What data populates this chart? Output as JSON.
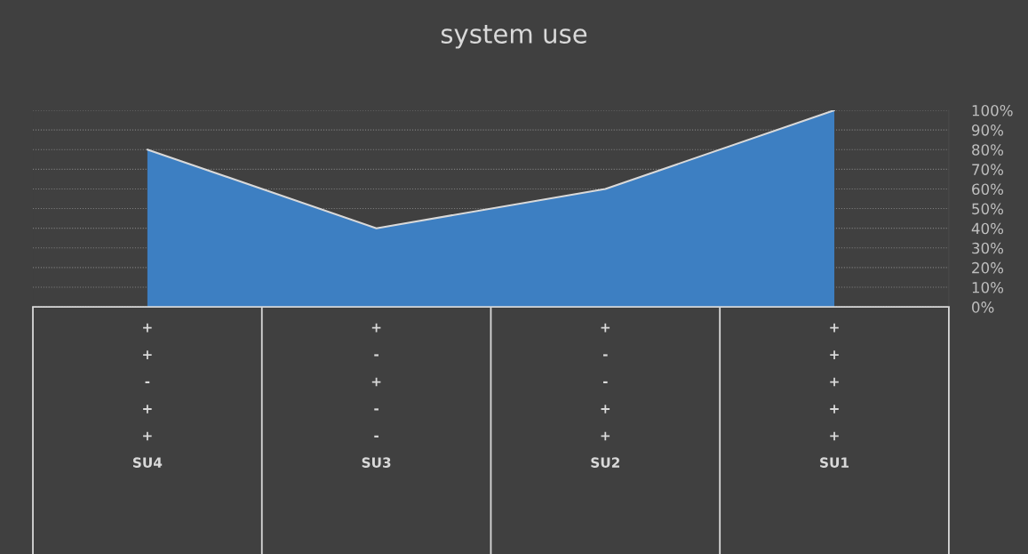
{
  "chart_data": {
    "type": "area",
    "title": "system use",
    "categories": [
      "+\n+\n-\n+\n+\nSU4",
      "+\n-\n+\n-\n-\nSU3",
      "+\n-\n-\n+\n+\nSU2",
      "+\n+\n+\n+\n+\nSU1"
    ],
    "series": [
      {
        "color": "#3d7fc2",
        "values": [
          80,
          40,
          60,
          100
        ]
      }
    ],
    "ylim": [
      0,
      100
    ],
    "yticks": [
      {
        "value": 0,
        "label": "0%"
      },
      {
        "value": 10,
        "label": "10%"
      },
      {
        "value": 20,
        "label": "20%"
      },
      {
        "value": 30,
        "label": "30%"
      },
      {
        "value": 40,
        "label": "40%"
      },
      {
        "value": 50,
        "label": "50%"
      },
      {
        "value": 60,
        "label": "60%"
      },
      {
        "value": 70,
        "label": "70%"
      },
      {
        "value": 80,
        "label": "80%"
      },
      {
        "value": 90,
        "label": "90%"
      },
      {
        "value": 100,
        "label": "100%"
      }
    ],
    "grid": "y"
  }
}
